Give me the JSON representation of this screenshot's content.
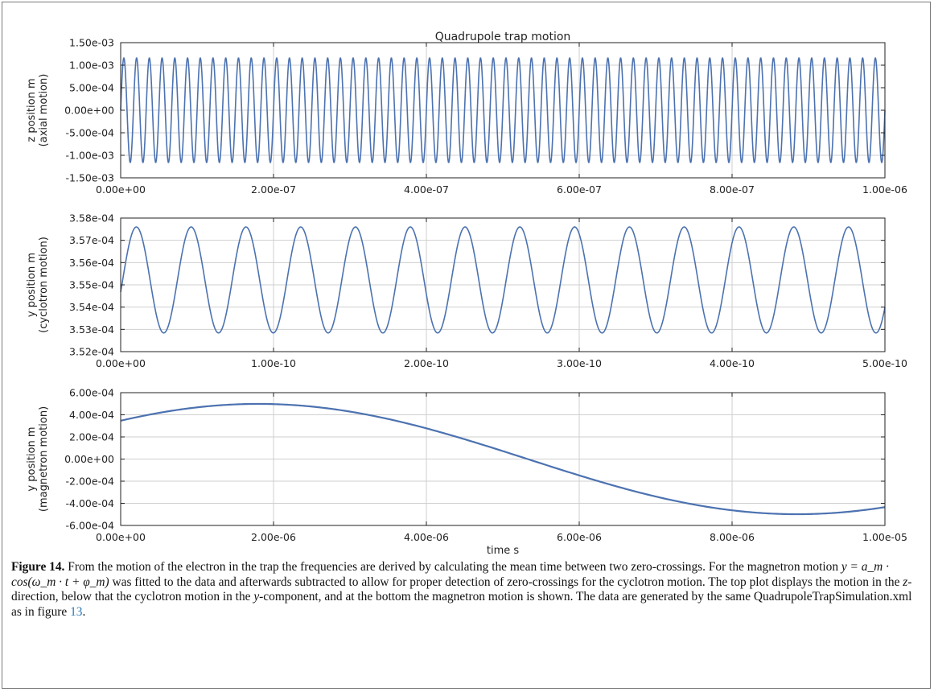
{
  "colors": {
    "line": "#4c72b0",
    "grid": "#cfcfcf",
    "axis": "#222222",
    "ref_link": "#2a7ab8"
  },
  "chart_data": [
    {
      "type": "line",
      "title": "Quadrupole trap motion",
      "xlabel": "",
      "ylabel_lines": [
        "z position m",
        "(axial motion)"
      ],
      "xlim": [
        0,
        1e-06
      ],
      "ylim": [
        -0.0015,
        0.0015
      ],
      "xticks": [
        "0.00e+00",
        "2.00e-07",
        "4.00e-07",
        "6.00e-07",
        "8.00e-07",
        "1.00e-06"
      ],
      "yticks": [
        "-1.50e-03",
        "-1.00e-03",
        "-5.00e-04",
        "0.00e+00",
        "5.00e-04",
        "1.00e-03",
        "1.50e-03"
      ],
      "grid": true,
      "series": [
        {
          "function": "sine",
          "amplitude": 0.00116,
          "offset": 0,
          "cycles": 60,
          "phase": 0
        }
      ]
    },
    {
      "type": "line",
      "title": "",
      "xlabel": "",
      "ylabel_lines": [
        "y position m",
        "(cyclotron motion)"
      ],
      "xlim": [
        0,
        5e-10
      ],
      "ylim": [
        0.000352,
        0.000358
      ],
      "xticks": [
        "0.00e+00",
        "1.00e-10",
        "2.00e-10",
        "3.00e-10",
        "4.00e-10",
        "5.00e-10"
      ],
      "yticks": [
        "3.52e-04",
        "3.53e-04",
        "3.54e-04",
        "3.55e-04",
        "3.56e-04",
        "3.57e-04",
        "3.58e-04"
      ],
      "grid": true,
      "series": [
        {
          "function": "sine",
          "amplitude": 2.38e-06,
          "offset": 0.00035522,
          "cycles": 13.95,
          "phase": -0.23
        }
      ]
    },
    {
      "type": "line",
      "title": "",
      "xlabel": "time s",
      "ylabel_lines": [
        "y position m",
        "(magnetron motion)"
      ],
      "xlim": [
        0,
        1e-05
      ],
      "ylim": [
        -0.0006,
        0.0006
      ],
      "xticks": [
        "0.00e+00",
        "2.00e-06",
        "4.00e-06",
        "6.00e-06",
        "8.00e-06",
        "1.00e-05"
      ],
      "yticks": [
        "-6.00e-04",
        "-4.00e-04",
        "-2.00e-04",
        "0.00e+00",
        "2.00e-04",
        "4.00e-04",
        "6.00e-04"
      ],
      "grid": true,
      "series": [
        {
          "function": "cosine",
          "amplitude": 0.0004985,
          "offset": 0,
          "period": 1.41e-05,
          "peak_x": 1.8e-06
        }
      ]
    }
  ],
  "caption": {
    "label": "Figure 14.",
    "text_1": " From the motion of the electron in the trap the frequencies are derived by calculating the mean time between two zero-crossings. For the magnetron motion ",
    "math": "y = a_m · cos(ω_m · t + φ_m)",
    "text_2": " was fitted to the data and afterwards subtracted to allow for proper detection of zero-crossings for the cyclotron motion. The top plot displays the motion in the ",
    "z_symbol": "z",
    "text_3": "-direction, below that the cyclotron motion in the ",
    "y_symbol": "y",
    "text_4": "-component, and at the bottom the magnetron motion is shown. The data are generated by the same QuadrupoleTrapSimulation.xml as in figure ",
    "ref_number": "13",
    "text_5": "."
  }
}
